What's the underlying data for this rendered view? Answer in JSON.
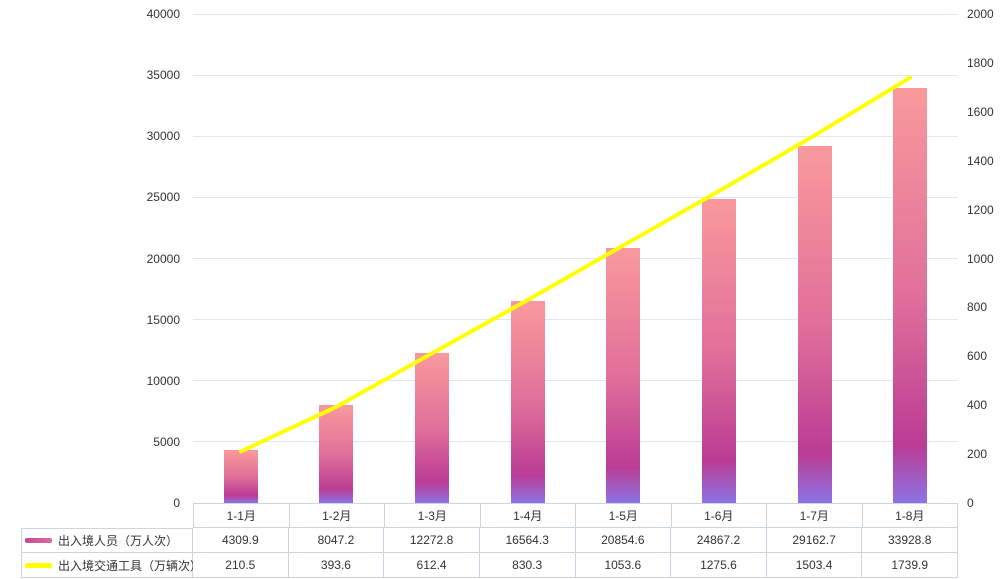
{
  "chart_data": {
    "type": "bar+line",
    "categories": [
      "1-1月",
      "1-2月",
      "1-3月",
      "1-4月",
      "1-5月",
      "1-6月",
      "1-7月",
      "1-8月"
    ],
    "series": [
      {
        "name": "出入境人员（万人次）",
        "type": "bar",
        "y_axis": "left",
        "values": [
          4309.9,
          8047.2,
          12272.8,
          16564.3,
          20854.6,
          24867.2,
          29162.7,
          33928.8
        ],
        "bar_gradient": [
          "#f9999c",
          "#e0709a",
          "#bb3c95",
          "#8c73e4"
        ],
        "bar_gradient_stops": [
          "0%",
          "50%",
          "86%",
          "100%"
        ]
      },
      {
        "name": "出入境交通工具（万辆次）",
        "type": "line",
        "y_axis": "right",
        "values": [
          210.5,
          393.6,
          612.4,
          830.3,
          1053.6,
          1275.6,
          1503.4,
          1739.9
        ],
        "color": "#ffff00"
      }
    ],
    "left_axis": {
      "min": 0,
      "max": 40000,
      "step": 5000,
      "ticks": [
        "0",
        "5000",
        "10000",
        "15000",
        "20000",
        "25000",
        "30000",
        "35000",
        "40000"
      ]
    },
    "right_axis": {
      "min": 0,
      "max": 2000,
      "step": 200,
      "ticks": [
        "0",
        "200",
        "400",
        "600",
        "800",
        "1000",
        "1200",
        "1400",
        "1600",
        "1800",
        "2000"
      ]
    },
    "grid": "horizontal gridlines only",
    "legend_position": "table rows bottom-left",
    "title": "",
    "xlabel": "",
    "ylabel": ""
  },
  "colors": {
    "background": "#ffffff",
    "grid_line": "#e2e6f0",
    "table_border": "#ccd3e2",
    "axis_text": "#333333",
    "line_series": "#ffff00"
  }
}
